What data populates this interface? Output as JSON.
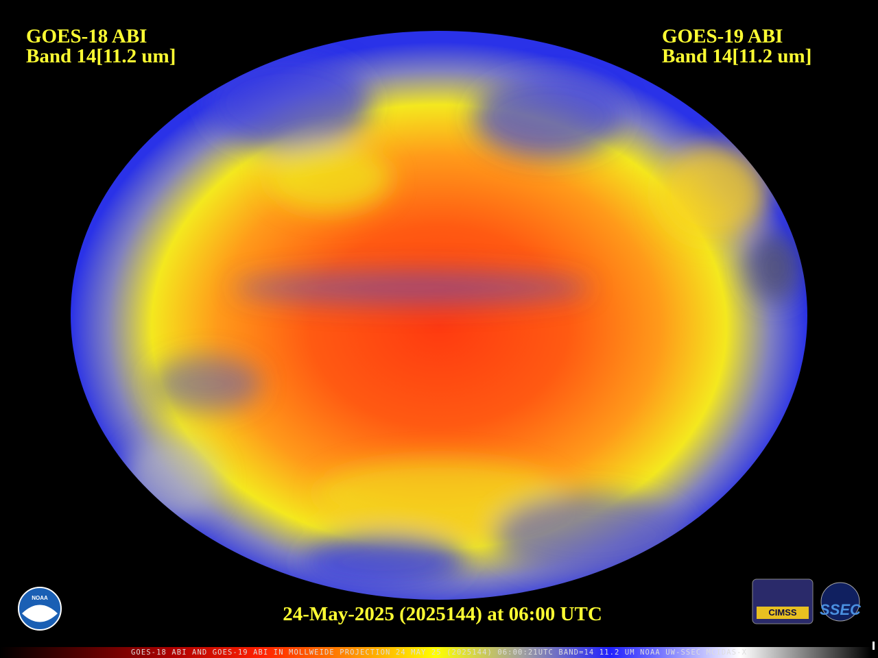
{
  "header_left": {
    "line1": "GOES-18 ABI",
    "line2": "Band 14[11.2 um]"
  },
  "header_right": {
    "line1": "GOES-19 ABI",
    "line2": "Band 14[11.2 um]"
  },
  "timestamp": "24-May-2025 (2025144) at 06:00 UTC",
  "footer": "GOES-18 ABI AND GOES-19 ABI IN MOLLWEIDE PROJECTION 24 MAY 25 (2025144) 06:00:21UTC BAND=14 11.2 UM NOAA UW-SSEC MCIDAS-X",
  "logos": {
    "noaa": "NOAA",
    "cimss": "CIMSS",
    "ssec": "SSEC"
  }
}
